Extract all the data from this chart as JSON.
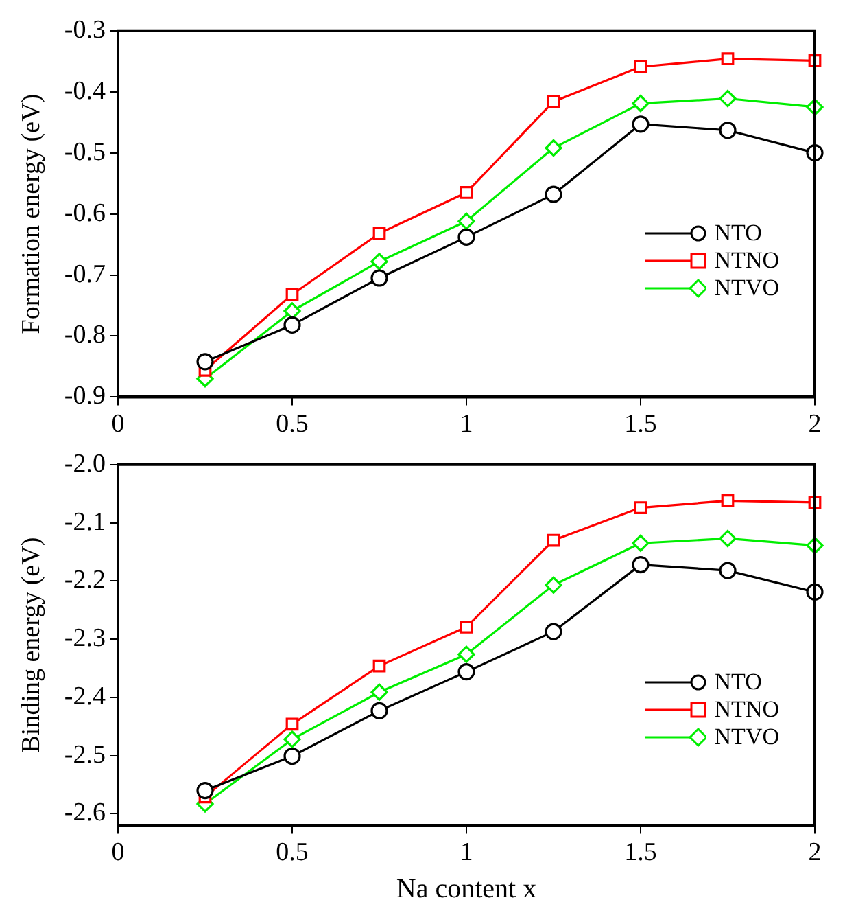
{
  "chart_data": [
    {
      "type": "line",
      "ylabel": "Formation energy (eV)",
      "x": [
        0.25,
        0.5,
        0.75,
        1,
        1.25,
        1.5,
        1.75,
        2
      ],
      "xlim": [
        0,
        2
      ],
      "xticks": [
        0,
        0.5,
        1,
        1.5,
        2
      ],
      "ylim": [
        -0.9,
        -0.3
      ],
      "yticks": [
        -0.9,
        -0.8,
        -0.7,
        -0.6,
        -0.5,
        -0.4,
        -0.3
      ],
      "legend": "right",
      "line_style": "solid",
      "series": [
        {
          "name": "NTO",
          "color": "#000000",
          "marker": "circle",
          "values": [
            -0.842,
            -0.782,
            -0.705,
            -0.638,
            -0.568,
            -0.453,
            -0.463,
            -0.5
          ]
        },
        {
          "name": "NTNO",
          "color": "#ff0000",
          "marker": "square",
          "values": [
            -0.856,
            -0.732,
            -0.632,
            -0.565,
            -0.416,
            -0.359,
            -0.346,
            -0.349
          ]
        },
        {
          "name": "NTVO",
          "color": "#00ee00",
          "marker": "diamond",
          "values": [
            -0.87,
            -0.759,
            -0.678,
            -0.612,
            -0.492,
            -0.419,
            -0.411,
            -0.425
          ]
        }
      ]
    },
    {
      "type": "line",
      "ylabel": "Binding energy (eV)",
      "xlabel": "Na content x",
      "x": [
        0.25,
        0.5,
        0.75,
        1,
        1.25,
        1.5,
        1.75,
        2
      ],
      "xlim": [
        0,
        2
      ],
      "xticks": [
        0,
        0.5,
        1,
        1.5,
        2
      ],
      "ylim": [
        -2.62,
        -2.0
      ],
      "yticks": [
        {
          "value": -2.6,
          "label": "-2.6"
        },
        {
          "value": -2.5,
          "label": "-2.5"
        },
        {
          "value": -2.4,
          "label": "-2.4"
        },
        {
          "value": -2.3,
          "label": "-2.3"
        },
        {
          "value": -2.2,
          "label": "-2.2"
        },
        {
          "value": -2.1,
          "label": "-2.1"
        },
        {
          "value": -2,
          "label": "-2.0"
        }
      ],
      "legend": "right",
      "line_style": "solid",
      "series": [
        {
          "name": "NTO",
          "color": "#000000",
          "marker": "circle",
          "values": [
            -2.56,
            -2.501,
            -2.423,
            -2.356,
            -2.287,
            -2.172,
            -2.182,
            -2.219
          ]
        },
        {
          "name": "NTNO",
          "color": "#ff0000",
          "marker": "square",
          "values": [
            -2.571,
            -2.446,
            -2.346,
            -2.279,
            -2.13,
            -2.074,
            -2.062,
            -2.065
          ]
        },
        {
          "name": "NTVO",
          "color": "#00ee00",
          "marker": "diamond",
          "values": [
            -2.583,
            -2.472,
            -2.391,
            -2.326,
            -2.207,
            -2.135,
            -2.127,
            -2.139
          ]
        }
      ]
    }
  ]
}
